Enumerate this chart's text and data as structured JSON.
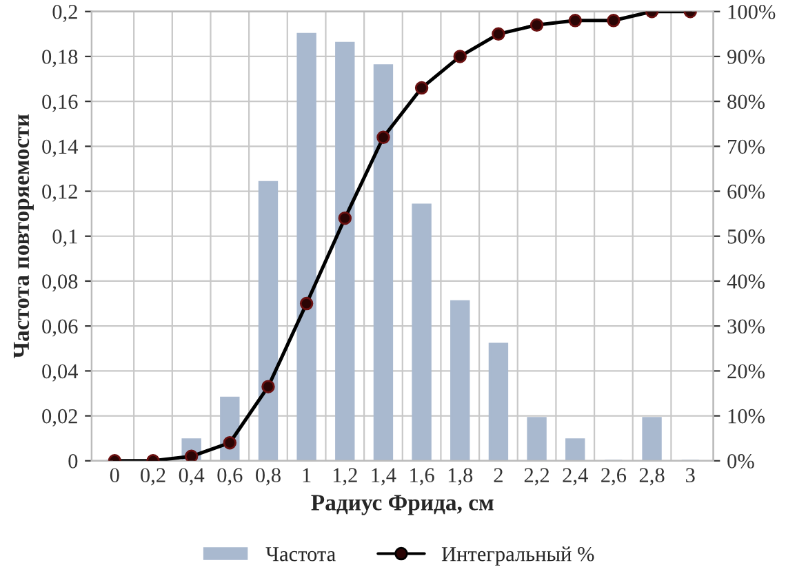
{
  "chart_data": {
    "type": "bar",
    "xlabel": "Радиус Фрида, см",
    "ylabel": "Частота повторяемости",
    "categories": [
      "0",
      "0,2",
      "0,4",
      "0,6",
      "0,8",
      "1",
      "1,2",
      "1,4",
      "1,6",
      "1,8",
      "2",
      "2,2",
      "2,4",
      "2,6",
      "2,8",
      "3"
    ],
    "series": [
      {
        "name": "Частота",
        "color": "#a9b9cf",
        "values": [
          0,
          0,
          0.0095,
          0.028,
          0.124,
          0.19,
          0.186,
          0.176,
          0.114,
          0.071,
          0.052,
          0.019,
          0.0095,
          0,
          0.019,
          0
        ]
      },
      {
        "name": "Интегральный %",
        "type": "line",
        "axis": "y2",
        "color": "#000000",
        "marker": "circle",
        "line_style": "solid",
        "values": [
          0,
          0,
          1,
          4,
          16.5,
          35,
          54,
          72,
          83,
          90,
          95,
          97,
          98,
          98,
          100,
          100
        ]
      }
    ],
    "ylim": [
      0,
      0.2
    ],
    "yticks": [
      0,
      {
        "value": 0.02,
        "label": "0,02"
      },
      {
        "value": 0.04,
        "label": "0,04"
      },
      {
        "value": 0.06,
        "label": "0,06"
      },
      {
        "value": 0.08,
        "label": "0,08"
      },
      {
        "value": 0.1,
        "label": "0,1"
      },
      {
        "value": 0.12,
        "label": "0,12"
      },
      {
        "value": 0.14,
        "label": "0,14"
      },
      {
        "value": 0.16,
        "label": "0,16"
      },
      {
        "value": 0.18,
        "label": "0,18"
      },
      {
        "value": 0.2,
        "label": "0,2"
      }
    ],
    "y2lim": [
      0,
      100
    ],
    "y2ticks": [
      {
        "value": 0,
        "label": "0%"
      },
      {
        "value": 10,
        "label": "10%"
      },
      {
        "value": 20,
        "label": "20%"
      },
      {
        "value": 30,
        "label": "30%"
      },
      {
        "value": 40,
        "label": "40%"
      },
      {
        "value": 50,
        "label": "50%"
      },
      {
        "value": 60,
        "label": "60%"
      },
      {
        "value": 70,
        "label": "70%"
      },
      {
        "value": 80,
        "label": "80%"
      },
      {
        "value": 90,
        "label": "90%"
      },
      {
        "value": 100,
        "label": "100%"
      }
    ],
    "grid": true,
    "legend": "bottom"
  }
}
